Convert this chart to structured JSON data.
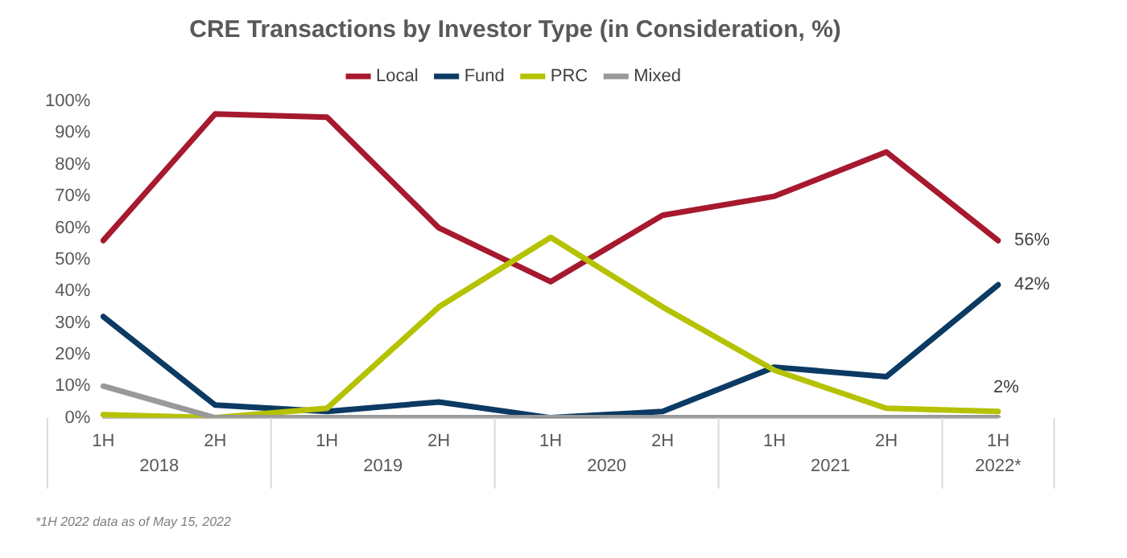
{
  "chart_data": {
    "type": "line",
    "title": "CRE Transactions by Investor Type (in Consideration, %)",
    "categories": [
      "1H",
      "2H",
      "1H",
      "2H",
      "1H",
      "2H",
      "1H",
      "2H",
      "1H"
    ],
    "series": [
      {
        "name": "Local",
        "color": "#a6192e",
        "values": [
          56,
          96,
          95,
          60,
          43,
          64,
          70,
          84,
          56
        ],
        "value_labels": [
          null,
          null,
          null,
          null,
          null,
          null,
          null,
          null,
          "56%"
        ]
      },
      {
        "name": "Fund",
        "color": "#0b3a63",
        "values": [
          32,
          4,
          2,
          5,
          0,
          2,
          16,
          13,
          42
        ],
        "value_labels": [
          null,
          null,
          null,
          null,
          null,
          null,
          null,
          null,
          "42%"
        ]
      },
      {
        "name": "PRC",
        "color": "#b5c200",
        "values": [
          1,
          0,
          3,
          35,
          57,
          35,
          15,
          3,
          2
        ],
        "value_labels": [
          null,
          null,
          null,
          null,
          null,
          null,
          null,
          null,
          "2%"
        ]
      },
      {
        "name": "Mixed",
        "color": "#999999",
        "values": [
          10,
          0,
          0,
          0,
          0,
          0,
          0,
          0,
          0
        ]
      }
    ],
    "ylim": [
      0,
      100
    ],
    "yticks": [
      {
        "value": 0,
        "label": "0%"
      },
      {
        "value": 10,
        "label": "10%"
      },
      {
        "value": 20,
        "label": "20%"
      },
      {
        "value": 30,
        "label": "30%"
      },
      {
        "value": 40,
        "label": "40%"
      },
      {
        "value": 50,
        "label": "50%"
      },
      {
        "value": 60,
        "label": "60%"
      },
      {
        "value": 70,
        "label": "70%"
      },
      {
        "value": 80,
        "label": "80%"
      },
      {
        "value": 90,
        "label": "90%"
      },
      {
        "value": 100,
        "label": "100%"
      }
    ],
    "annotations": [
      "2018",
      "2019",
      "2020",
      "2021",
      "2022*",
      "*1H 2022 data as of May 15, 2022"
    ],
    "grid": false,
    "legend": "top",
    "marker": "none",
    "line_style": "solid"
  }
}
